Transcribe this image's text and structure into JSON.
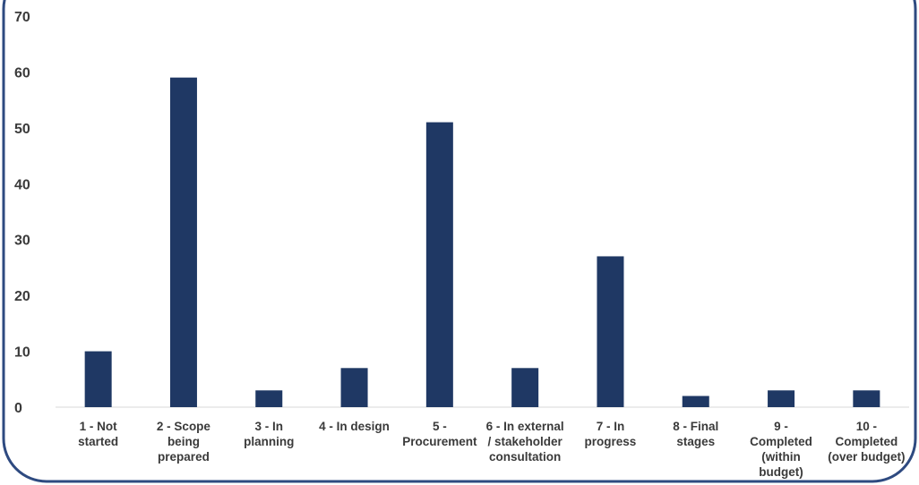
{
  "chart_data": {
    "type": "bar",
    "title": "",
    "xlabel": "",
    "ylabel": "",
    "ylim": [
      0,
      70
    ],
    "yticks": [
      0,
      10,
      20,
      30,
      40,
      50,
      60,
      70
    ],
    "grid": false,
    "categories": [
      [
        "1 - Not",
        "started"
      ],
      [
        "2 - Scope",
        "being",
        "prepared"
      ],
      [
        "3 - In",
        "planning"
      ],
      [
        "4 - In design"
      ],
      [
        "5 -",
        "Procurement"
      ],
      [
        "6 - In external",
        "/ stakeholder",
        "consultation"
      ],
      [
        "7 - In",
        "progress"
      ],
      [
        "8 - Final",
        "stages"
      ],
      [
        "9 -",
        "Completed",
        "(within",
        "budget)"
      ],
      [
        "10 -",
        "Completed",
        "(over budget)"
      ]
    ],
    "values": [
      10,
      59,
      3,
      7,
      51,
      7,
      27,
      2,
      3,
      3
    ],
    "colors": {
      "bar": "#1f3864",
      "frame": "#2e4a80",
      "axis": "#d9d9d9",
      "text": "#3a3a3a"
    }
  }
}
